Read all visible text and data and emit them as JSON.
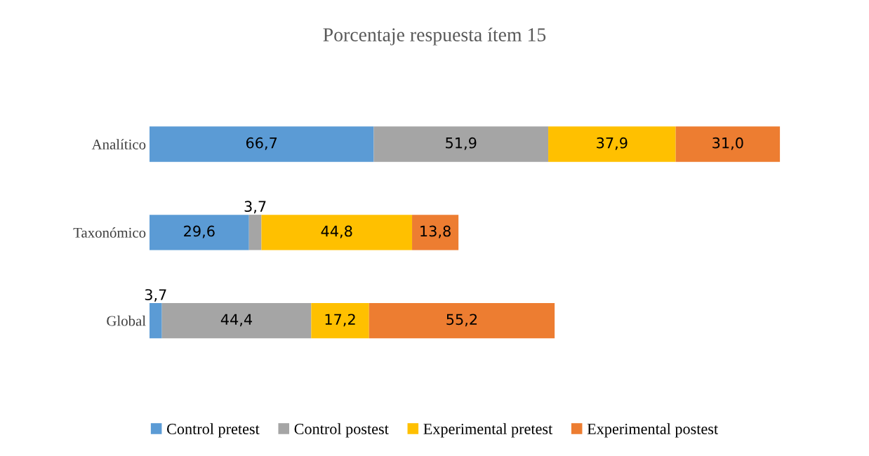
{
  "chart_data": {
    "type": "bar",
    "orientation": "horizontal",
    "stacked": true,
    "title": "Porcentaje respuesta ítem 15",
    "categories": [
      "Analítico",
      "Taxonómico",
      "Global"
    ],
    "series": [
      {
        "name": "Control pretest",
        "color": "#5b9bd5",
        "values": [
          66.7,
          29.6,
          3.7
        ],
        "value_labels": [
          "66,7",
          "29,6",
          "3,7"
        ]
      },
      {
        "name": "Control postest",
        "color": "#a5a5a5",
        "values": [
          51.9,
          3.7,
          44.4
        ],
        "value_labels": [
          "51,9",
          "3,7",
          "44,4"
        ]
      },
      {
        "name": "Experimental pretest",
        "color": "#ffc000",
        "values": [
          37.9,
          44.8,
          17.2
        ],
        "value_labels": [
          "37,9",
          "44,8",
          "17,2"
        ]
      },
      {
        "name": "Experimental postest",
        "color": "#ed7d31",
        "values": [
          31.0,
          13.8,
          55.2
        ],
        "value_labels": [
          "31,0",
          "13,8",
          "55,2"
        ]
      }
    ],
    "legend": "bottom",
    "grid": false,
    "tick_labels": "y"
  }
}
